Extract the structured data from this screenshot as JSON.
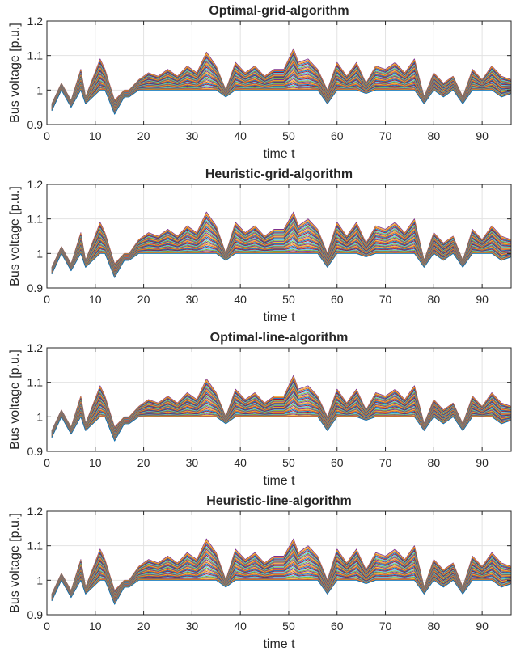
{
  "colors": [
    "#0072bd",
    "#d95319",
    "#edb120",
    "#7e2f8e",
    "#77ac30",
    "#4dbeee",
    "#a2142f"
  ],
  "chart_data": [
    {
      "type": "line",
      "title": "Optimal-grid-algorithm",
      "xlabel": "time t",
      "ylabel": "Bus voltage [p.u.]",
      "xlim": [
        0,
        96
      ],
      "ylim": [
        0.9,
        1.2
      ],
      "xticks": [
        0,
        10,
        20,
        30,
        40,
        50,
        60,
        70,
        80,
        90
      ],
      "yticks": [
        0.9,
        1,
        1.1,
        1.2
      ],
      "xtick_labels": [
        "0",
        "10",
        "20",
        "30",
        "40",
        "50",
        "60",
        "70",
        "80",
        "90"
      ],
      "ytick_labels": [
        "0.9",
        "1",
        "1.1",
        "1.2"
      ],
      "grid": true,
      "series_count": 32,
      "x": [
        1,
        3,
        5,
        7,
        8,
        11,
        12,
        14,
        16,
        17,
        19,
        21,
        23,
        25,
        27,
        29,
        31,
        33,
        35,
        37,
        39,
        41,
        43,
        45,
        47,
        49,
        51,
        52,
        54,
        56,
        58,
        60,
        62,
        64,
        66,
        68,
        70,
        72,
        74,
        76,
        78,
        80,
        82,
        84,
        86,
        88,
        90,
        92,
        94,
        96
      ],
      "envelope_max": [
        0.96,
        1.02,
        0.97,
        1.06,
        0.98,
        1.09,
        1.06,
        0.97,
        1.0,
        1.0,
        1.03,
        1.05,
        1.04,
        1.06,
        1.04,
        1.07,
        1.05,
        1.11,
        1.07,
        1.0,
        1.08,
        1.05,
        1.07,
        1.04,
        1.06,
        1.06,
        1.12,
        1.08,
        1.09,
        1.06,
        1.0,
        1.08,
        1.04,
        1.08,
        1.02,
        1.07,
        1.06,
        1.08,
        1.05,
        1.09,
        0.98,
        1.05,
        1.02,
        1.04,
        0.98,
        1.06,
        1.03,
        1.07,
        1.04,
        1.03
      ],
      "envelope_min": [
        0.94,
        1.0,
        0.95,
        1.0,
        0.96,
        1.0,
        1.0,
        0.93,
        0.98,
        0.98,
        1.0,
        1.0,
        1.0,
        1.0,
        1.0,
        1.0,
        1.0,
        1.0,
        1.0,
        0.98,
        1.0,
        1.0,
        1.0,
        1.0,
        1.0,
        1.0,
        1.0,
        1.0,
        1.0,
        1.0,
        0.96,
        1.0,
        1.0,
        1.0,
        0.99,
        1.0,
        1.0,
        1.0,
        1.0,
        1.0,
        0.96,
        1.0,
        0.98,
        1.0,
        0.96,
        1.0,
        1.0,
        1.0,
        0.98,
        0.99
      ]
    },
    {
      "type": "line",
      "title": "Heuristic-grid-algorithm",
      "xlabel": "time t",
      "ylabel": "Bus voltage [p.u.]",
      "xlim": [
        0,
        96
      ],
      "ylim": [
        0.9,
        1.2
      ],
      "xticks": [
        0,
        10,
        20,
        30,
        40,
        50,
        60,
        70,
        80,
        90
      ],
      "yticks": [
        0.9,
        1,
        1.1,
        1.2
      ],
      "xtick_labels": [
        "0",
        "10",
        "20",
        "30",
        "40",
        "50",
        "60",
        "70",
        "80",
        "90"
      ],
      "ytick_labels": [
        "0.9",
        "1",
        "1.1",
        "1.2"
      ],
      "grid": true,
      "series_count": 32,
      "x": [
        1,
        3,
        5,
        7,
        8,
        11,
        12,
        14,
        16,
        17,
        19,
        21,
        23,
        25,
        27,
        29,
        31,
        33,
        35,
        37,
        39,
        41,
        43,
        45,
        47,
        49,
        51,
        52,
        54,
        56,
        58,
        60,
        62,
        64,
        66,
        68,
        70,
        72,
        74,
        76,
        78,
        80,
        82,
        84,
        86,
        88,
        90,
        92,
        94,
        96
      ],
      "envelope_max": [
        0.96,
        1.02,
        0.97,
        1.06,
        0.98,
        1.09,
        1.06,
        0.97,
        1.0,
        1.0,
        1.04,
        1.06,
        1.05,
        1.07,
        1.05,
        1.08,
        1.06,
        1.12,
        1.08,
        1.0,
        1.09,
        1.06,
        1.08,
        1.05,
        1.07,
        1.07,
        1.12,
        1.08,
        1.1,
        1.07,
        1.0,
        1.09,
        1.05,
        1.09,
        1.03,
        1.08,
        1.07,
        1.09,
        1.06,
        1.1,
        0.98,
        1.06,
        1.03,
        1.05,
        0.98,
        1.07,
        1.04,
        1.08,
        1.05,
        1.04
      ],
      "envelope_min": [
        0.94,
        1.0,
        0.95,
        1.0,
        0.96,
        1.0,
        1.0,
        0.93,
        0.98,
        0.98,
        1.0,
        1.0,
        1.0,
        1.0,
        1.0,
        1.0,
        1.0,
        1.0,
        1.0,
        0.98,
        1.0,
        1.0,
        1.0,
        1.0,
        1.0,
        1.0,
        1.0,
        1.0,
        1.0,
        1.0,
        0.96,
        1.0,
        1.0,
        1.0,
        0.99,
        1.0,
        1.0,
        1.0,
        1.0,
        1.0,
        0.96,
        1.0,
        0.98,
        1.0,
        0.96,
        1.0,
        1.0,
        1.0,
        0.98,
        0.99
      ]
    },
    {
      "type": "line",
      "title": "Optimal-line-algorithm",
      "xlabel": "time t",
      "ylabel": "Bus voltage [p.u.]",
      "xlim": [
        0,
        96
      ],
      "ylim": [
        0.9,
        1.2
      ],
      "xticks": [
        0,
        10,
        20,
        30,
        40,
        50,
        60,
        70,
        80,
        90
      ],
      "yticks": [
        0.9,
        1,
        1.1,
        1.2
      ],
      "xtick_labels": [
        "0",
        "10",
        "20",
        "30",
        "40",
        "50",
        "60",
        "70",
        "80",
        "90"
      ],
      "ytick_labels": [
        "0.9",
        "1",
        "1.1",
        "1.2"
      ],
      "grid": true,
      "series_count": 32,
      "x": [
        1,
        3,
        5,
        7,
        8,
        11,
        12,
        14,
        16,
        17,
        19,
        21,
        23,
        25,
        27,
        29,
        31,
        33,
        35,
        37,
        39,
        41,
        43,
        45,
        47,
        49,
        51,
        52,
        54,
        56,
        58,
        60,
        62,
        64,
        66,
        68,
        70,
        72,
        74,
        76,
        78,
        80,
        82,
        84,
        86,
        88,
        90,
        92,
        94,
        96
      ],
      "envelope_max": [
        0.96,
        1.02,
        0.97,
        1.06,
        0.98,
        1.09,
        1.06,
        0.97,
        1.0,
        1.0,
        1.03,
        1.05,
        1.04,
        1.06,
        1.04,
        1.07,
        1.05,
        1.11,
        1.07,
        1.0,
        1.08,
        1.05,
        1.07,
        1.04,
        1.06,
        1.06,
        1.12,
        1.08,
        1.09,
        1.06,
        1.0,
        1.08,
        1.04,
        1.08,
        1.02,
        1.07,
        1.06,
        1.08,
        1.05,
        1.09,
        0.98,
        1.05,
        1.02,
        1.04,
        0.98,
        1.06,
        1.03,
        1.07,
        1.04,
        1.03
      ],
      "envelope_min": [
        0.94,
        1.0,
        0.95,
        1.0,
        0.96,
        1.0,
        1.0,
        0.93,
        0.98,
        0.98,
        1.0,
        1.0,
        1.0,
        1.0,
        1.0,
        1.0,
        1.0,
        1.0,
        1.0,
        0.98,
        1.0,
        1.0,
        1.0,
        1.0,
        1.0,
        1.0,
        1.0,
        1.0,
        1.0,
        1.0,
        0.96,
        1.0,
        1.0,
        1.0,
        0.99,
        1.0,
        1.0,
        1.0,
        1.0,
        1.0,
        0.96,
        1.0,
        0.98,
        1.0,
        0.96,
        1.0,
        1.0,
        1.0,
        0.98,
        0.99
      ]
    },
    {
      "type": "line",
      "title": "Heuristic-line-algorithm",
      "xlabel": "time t",
      "ylabel": "Bus voltage [p.u.]",
      "xlim": [
        0,
        96
      ],
      "ylim": [
        0.9,
        1.2
      ],
      "xticks": [
        0,
        10,
        20,
        30,
        40,
        50,
        60,
        70,
        80,
        90
      ],
      "yticks": [
        0.9,
        1,
        1.1,
        1.2
      ],
      "xtick_labels": [
        "0",
        "10",
        "20",
        "30",
        "40",
        "50",
        "60",
        "70",
        "80",
        "90"
      ],
      "ytick_labels": [
        "0.9",
        "1",
        "1.1",
        "1.2"
      ],
      "grid": true,
      "series_count": 32,
      "x": [
        1,
        3,
        5,
        7,
        8,
        11,
        12,
        14,
        16,
        17,
        19,
        21,
        23,
        25,
        27,
        29,
        31,
        33,
        35,
        37,
        39,
        41,
        43,
        45,
        47,
        49,
        51,
        52,
        54,
        56,
        58,
        60,
        62,
        64,
        66,
        68,
        70,
        72,
        74,
        76,
        78,
        80,
        82,
        84,
        86,
        88,
        90,
        92,
        94,
        96
      ],
      "envelope_max": [
        0.96,
        1.02,
        0.97,
        1.06,
        0.98,
        1.09,
        1.06,
        0.97,
        1.0,
        1.0,
        1.04,
        1.06,
        1.05,
        1.07,
        1.05,
        1.08,
        1.06,
        1.12,
        1.08,
        1.0,
        1.09,
        1.06,
        1.08,
        1.05,
        1.07,
        1.07,
        1.12,
        1.08,
        1.1,
        1.07,
        1.0,
        1.09,
        1.05,
        1.09,
        1.03,
        1.08,
        1.07,
        1.09,
        1.06,
        1.1,
        0.98,
        1.06,
        1.03,
        1.05,
        0.98,
        1.07,
        1.04,
        1.08,
        1.05,
        1.04
      ],
      "envelope_min": [
        0.94,
        1.0,
        0.95,
        1.0,
        0.96,
        1.0,
        1.0,
        0.93,
        0.98,
        0.98,
        1.0,
        1.0,
        1.0,
        1.0,
        1.0,
        1.0,
        1.0,
        1.0,
        1.0,
        0.98,
        1.0,
        1.0,
        1.0,
        1.0,
        1.0,
        1.0,
        1.0,
        1.0,
        1.0,
        1.0,
        0.96,
        1.0,
        1.0,
        1.0,
        0.99,
        1.0,
        1.0,
        1.0,
        1.0,
        1.0,
        0.96,
        1.0,
        0.98,
        1.0,
        0.96,
        1.0,
        1.0,
        1.0,
        0.98,
        0.99
      ]
    }
  ]
}
